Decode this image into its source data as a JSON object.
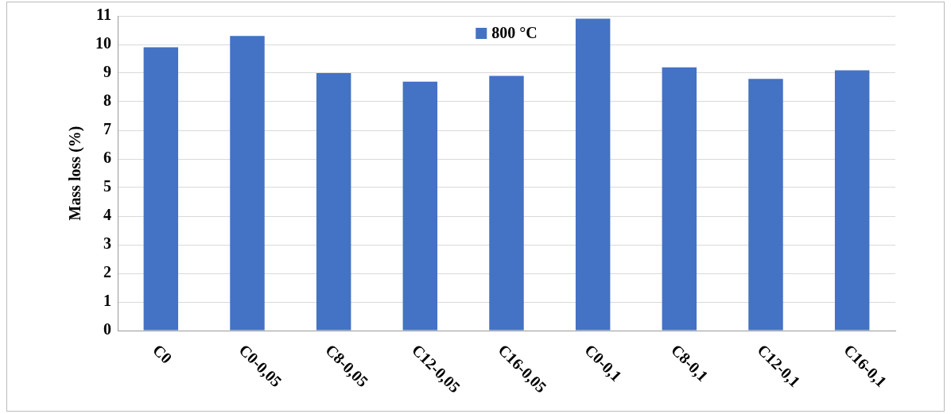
{
  "chart_data": {
    "type": "bar",
    "ylabel": "Mass loss (%)",
    "categories": [
      "C0",
      "C0-0,05",
      "C8-0,05",
      "C12-0,05",
      "C16-0,05",
      "C0-0,1",
      "C8-0,1",
      "C12-0,1",
      "C16-0,1"
    ],
    "series": [
      {
        "name": "800 °C",
        "color": "#4472c4",
        "values": [
          9.9,
          10.3,
          9.0,
          8.7,
          8.9,
          10.9,
          9.2,
          8.8,
          9.1
        ]
      }
    ],
    "ylim": [
      0,
      11
    ],
    "yticks": [
      0,
      1,
      2,
      3,
      4,
      5,
      6,
      7,
      8,
      9,
      10,
      11
    ],
    "grid": "y",
    "legend": "top"
  }
}
